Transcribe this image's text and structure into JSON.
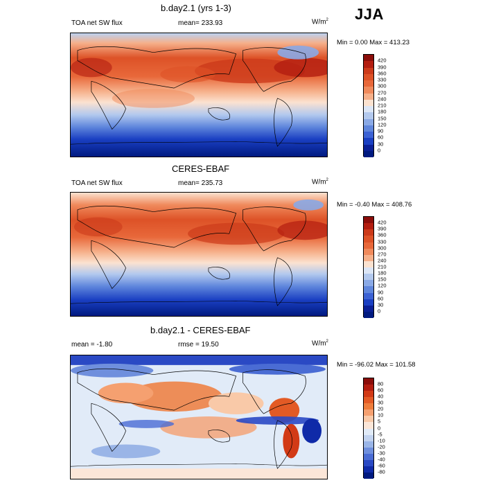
{
  "season": "JJA",
  "panels": [
    {
      "title": "b.day2.1 (yrs 1-3)",
      "variable": "TOA net SW flux",
      "stat": "mean= 233.93",
      "units_base": "W/m",
      "units_exp": "2",
      "minmax": "Min =   0.00 Max = 413.23",
      "colorbar_labels": [
        "420",
        "390",
        "360",
        "330",
        "300",
        "270",
        "240",
        "210",
        "180",
        "150",
        "120",
        "90",
        "60",
        "30",
        "0"
      ]
    },
    {
      "title": "CERES-EBAF",
      "variable": "TOA net SW flux",
      "stat": "mean= 235.73",
      "units_base": "W/m",
      "units_exp": "2",
      "minmax": "Min =  -0.40 Max = 408.76",
      "colorbar_labels": [
        "420",
        "390",
        "360",
        "330",
        "300",
        "270",
        "240",
        "210",
        "180",
        "150",
        "120",
        "90",
        "60",
        "30",
        "0"
      ]
    },
    {
      "title": "b.day2.1 - CERES-EBAF",
      "variable": "mean =  -1.80",
      "stat": "rmse =  19.50",
      "units_base": "W/m",
      "units_exp": "2",
      "minmax": "Min = -96.02 Max = 101.58",
      "colorbar_labels": [
        "80",
        "60",
        "40",
        "30",
        "20",
        "10",
        "5",
        "0",
        "-5",
        "-10",
        "-20",
        "-30",
        "-40",
        "-60",
        "-80"
      ]
    }
  ],
  "colors": {
    "abs_scale": [
      "#8b0d0a",
      "#b31d10",
      "#cc3a1a",
      "#dd5227",
      "#e8683a",
      "#f08a5c",
      "#f6b08a",
      "#fbe2d0",
      "#dce6f6",
      "#b3c9ee",
      "#8aa9e6",
      "#5f86dc",
      "#3c62d4",
      "#1a3fc2",
      "#0a1f96",
      "#001a80"
    ],
    "diff_scale": [
      "#8b0d0a",
      "#b31d10",
      "#d23a16",
      "#e35a25",
      "#ee7d3c",
      "#f5a070",
      "#f9c9a8",
      "#fbe6d8",
      "#e1ebf8",
      "#c2d3f0",
      "#9ab5e7",
      "#6f8fdd",
      "#4a6cd4",
      "#2a49c4",
      "#0f2aa8",
      "#001a80"
    ]
  }
}
